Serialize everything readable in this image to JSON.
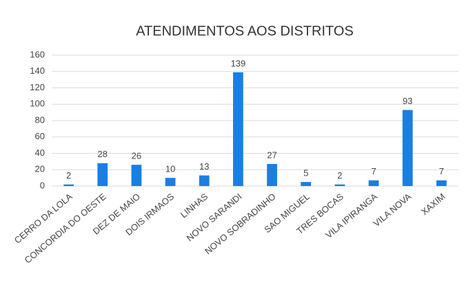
{
  "chart_data": {
    "type": "bar",
    "title": "ATENDIMENTOS AOS DISTRITOS",
    "categories": [
      "CERRO DA LOLA",
      "CONCORDIA DO OESTE",
      "DEZ DE MAIO",
      "DOIS IRMAOS",
      "LINHAS",
      "NOVO SARANDI",
      "NOVO SOBRADINHO",
      "SAO MIGUEL",
      "TRES BOCAS",
      "VILA IPIRANGA",
      "VILA NOVA",
      "XAXIM"
    ],
    "values": [
      2,
      28,
      26,
      10,
      13,
      139,
      27,
      5,
      2,
      7,
      93,
      7
    ],
    "color": "#1a7fe3",
    "ylim": [
      0,
      160
    ],
    "yticks": [
      0,
      20,
      40,
      60,
      80,
      100,
      120,
      140,
      160
    ],
    "grid": true
  }
}
